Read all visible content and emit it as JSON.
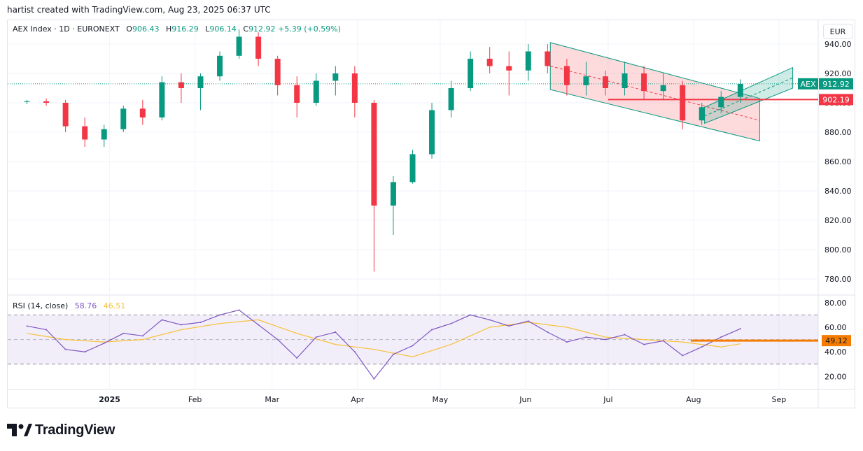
{
  "credit": "hartist created with TradingView.com, Aug 23, 2025 06:37 UTC",
  "currency": "EUR",
  "legend": {
    "symbol": "AEX Index · 1D · EURONEXT",
    "o_label": "O",
    "o": "906.43",
    "h_label": "H",
    "h": "916.29",
    "l_label": "L",
    "l": "906.14",
    "c_label": "C",
    "c": "912.92",
    "change": "+5.39 (+0.59%)"
  },
  "rsi_legend": {
    "name": "RSI (14, close)",
    "rsi": "58.76",
    "ma": "46.51"
  },
  "logo_text": "TradingView",
  "colors": {
    "up": "#089981",
    "down": "#f23645",
    "rsi": "#7e57c2",
    "rsi_ma": "#f7c137",
    "level": "#f57c00"
  },
  "chart_data": [
    {
      "type": "candlestick",
      "symbol": "AEX",
      "ylim": [
        770,
        950
      ],
      "y_ticks": [
        "940.00",
        "920.00",
        "900.00",
        "880.00",
        "860.00",
        "840.00",
        "820.00",
        "800.00",
        "780.00"
      ],
      "x_ticks": [
        "2025",
        "Feb",
        "Mar",
        "Apr",
        "May",
        "Jun",
        "Jul",
        "Aug",
        "Sep"
      ],
      "last_price_label": "AEX",
      "last_price": "912.92",
      "horizontal_level": "902.19",
      "ohlc_points": [
        [
          "2024-12-02",
          901,
          902,
          899,
          901
        ],
        [
          "2024-12-09",
          901,
          903,
          898,
          900
        ],
        [
          "2024-12-16",
          900,
          902,
          880,
          884
        ],
        [
          "2024-12-23",
          884,
          890,
          870,
          875
        ],
        [
          "2024-12-30",
          875,
          885,
          870,
          882
        ],
        [
          "2025-01-06",
          882,
          898,
          880,
          896
        ],
        [
          "2025-01-13",
          896,
          902,
          885,
          890
        ],
        [
          "2025-01-20",
          890,
          918,
          888,
          914
        ],
        [
          "2025-01-27",
          914,
          920,
          900,
          910
        ],
        [
          "2025-02-03",
          910,
          920,
          895,
          918
        ],
        [
          "2025-02-10",
          918,
          935,
          915,
          932
        ],
        [
          "2025-02-17",
          932,
          950,
          930,
          945
        ],
        [
          "2025-02-24",
          945,
          948,
          925,
          930
        ],
        [
          "2025-03-03",
          930,
          932,
          905,
          912
        ],
        [
          "2025-03-10",
          912,
          918,
          890,
          900
        ],
        [
          "2025-03-17",
          900,
          920,
          898,
          915
        ],
        [
          "2025-03-24",
          915,
          925,
          905,
          920
        ],
        [
          "2025-03-31",
          920,
          925,
          890,
          900
        ],
        [
          "2025-04-07",
          900,
          902,
          785,
          830
        ],
        [
          "2025-04-14",
          830,
          850,
          810,
          846
        ],
        [
          "2025-04-21",
          846,
          868,
          845,
          865
        ],
        [
          "2025-04-28",
          865,
          900,
          862,
          895
        ],
        [
          "2025-05-05",
          895,
          915,
          890,
          910
        ],
        [
          "2025-05-12",
          910,
          935,
          908,
          930
        ],
        [
          "2025-05-19",
          930,
          938,
          920,
          925
        ],
        [
          "2025-05-26",
          925,
          935,
          905,
          922
        ],
        [
          "2025-06-02",
          922,
          940,
          915,
          935
        ],
        [
          "2025-06-09",
          935,
          940,
          920,
          925
        ],
        [
          "2025-06-16",
          925,
          930,
          905,
          912
        ],
        [
          "2025-06-23",
          912,
          928,
          905,
          918
        ],
        [
          "2025-06-30",
          918,
          922,
          905,
          910
        ],
        [
          "2025-07-07",
          910,
          928,
          905,
          920
        ],
        [
          "2025-07-14",
          920,
          925,
          902,
          908
        ],
        [
          "2025-07-21",
          908,
          920,
          902,
          912
        ],
        [
          "2025-07-28",
          912,
          915,
          882,
          888
        ],
        [
          "2025-08-04",
          888,
          900,
          885,
          897
        ],
        [
          "2025-08-11",
          897,
          908,
          893,
          904
        ],
        [
          "2025-08-18",
          904,
          916,
          900,
          912.92
        ]
      ]
    },
    {
      "type": "line",
      "name": "RSI (14, close)",
      "ylim": [
        10,
        85
      ],
      "y_ticks": [
        "80.00",
        "60.00",
        "40.00",
        "20.00"
      ],
      "bands": [
        30,
        50,
        70
      ],
      "level_label": "49.12",
      "rsi_points": [
        [
          "2024-12-02",
          61
        ],
        [
          "2024-12-09",
          58
        ],
        [
          "2024-12-16",
          42
        ],
        [
          "2024-12-23",
          40
        ],
        [
          "2024-12-30",
          47
        ],
        [
          "2025-01-06",
          55
        ],
        [
          "2025-01-13",
          53
        ],
        [
          "2025-01-20",
          66
        ],
        [
          "2025-01-27",
          62
        ],
        [
          "2025-02-03",
          64
        ],
        [
          "2025-02-10",
          70
        ],
        [
          "2025-02-17",
          74
        ],
        [
          "2025-02-24",
          62
        ],
        [
          "2025-03-03",
          50
        ],
        [
          "2025-03-10",
          35
        ],
        [
          "2025-03-17",
          52
        ],
        [
          "2025-03-24",
          56
        ],
        [
          "2025-03-31",
          40
        ],
        [
          "2025-04-07",
          18
        ],
        [
          "2025-04-14",
          38
        ],
        [
          "2025-04-21",
          45
        ],
        [
          "2025-04-28",
          58
        ],
        [
          "2025-05-05",
          63
        ],
        [
          "2025-05-12",
          70
        ],
        [
          "2025-05-19",
          66
        ],
        [
          "2025-05-26",
          61
        ],
        [
          "2025-06-02",
          65
        ],
        [
          "2025-06-09",
          56
        ],
        [
          "2025-06-16",
          48
        ],
        [
          "2025-06-23",
          52
        ],
        [
          "2025-06-30",
          50
        ],
        [
          "2025-07-07",
          54
        ],
        [
          "2025-07-14",
          46
        ],
        [
          "2025-07-21",
          49
        ],
        [
          "2025-07-28",
          37
        ],
        [
          "2025-08-04",
          44
        ],
        [
          "2025-08-11",
          52
        ],
        [
          "2025-08-18",
          58.76
        ]
      ],
      "rsi_ma_points": [
        [
          "2024-12-02",
          55
        ],
        [
          "2024-12-16",
          50
        ],
        [
          "2024-12-30",
          48
        ],
        [
          "2025-01-13",
          50
        ],
        [
          "2025-01-27",
          58
        ],
        [
          "2025-02-10",
          63
        ],
        [
          "2025-02-24",
          66
        ],
        [
          "2025-03-10",
          55
        ],
        [
          "2025-03-24",
          46
        ],
        [
          "2025-04-07",
          42
        ],
        [
          "2025-04-21",
          36
        ],
        [
          "2025-05-05",
          46
        ],
        [
          "2025-05-19",
          60
        ],
        [
          "2025-06-02",
          64
        ],
        [
          "2025-06-16",
          60
        ],
        [
          "2025-06-30",
          52
        ],
        [
          "2025-07-14",
          50
        ],
        [
          "2025-07-28",
          48
        ],
        [
          "2025-08-11",
          44
        ],
        [
          "2025-08-18",
          46.51
        ]
      ]
    }
  ]
}
